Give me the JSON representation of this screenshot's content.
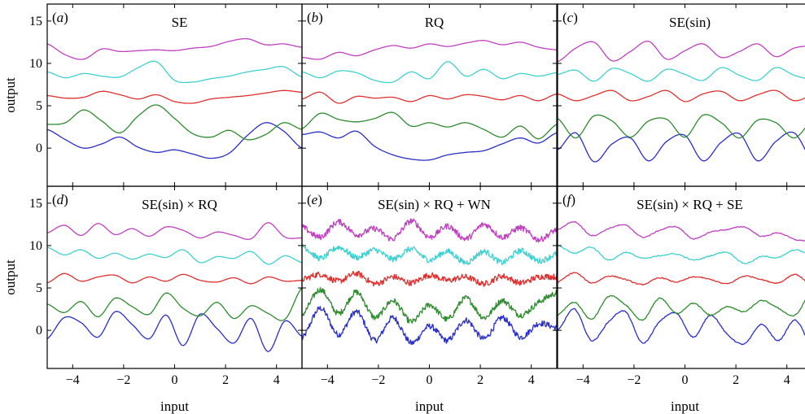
{
  "chart_data": {
    "type": "line",
    "layout": "2x3 grid",
    "xlabel": "input",
    "ylabel": "output",
    "xlim": [
      -5,
      5
    ],
    "ylim": [
      -4.5,
      17
    ],
    "x_ticks": [
      -4,
      -2,
      0,
      2,
      4
    ],
    "x_tick_labels": [
      "−4",
      "−2",
      "0",
      "2",
      "4"
    ],
    "y_ticks": [
      0,
      5,
      10,
      15
    ],
    "y_tick_labels": [
      "0",
      "5",
      "10",
      "15"
    ],
    "series_colors": [
      "#2a2fc8",
      "#2e8b2e",
      "#e03030",
      "#40d0d0",
      "#c040c0"
    ],
    "series_offsets": [
      0,
      3,
      6,
      9,
      12
    ],
    "panels": [
      {
        "letter": "a",
        "title": "SE",
        "noise": 0,
        "series": [
          {
            "color": "#2a2fc8",
            "values": [
              2.2,
              1.0,
              0.0,
              0.5,
              1.3,
              0.1,
              -0.5,
              -0.2,
              -0.7,
              -1.2,
              -0.6,
              1.5,
              3.0,
              2.0,
              0.0
            ]
          },
          {
            "color": "#2e8b2e",
            "values": [
              2.8,
              3.0,
              4.5,
              3.2,
              1.8,
              3.8,
              5.1,
              3.5,
              1.7,
              1.3,
              2.1,
              1.0,
              1.6,
              3.0,
              2.2
            ]
          },
          {
            "color": "#e03030",
            "values": [
              6.2,
              5.9,
              6.0,
              6.7,
              6.3,
              5.8,
              6.3,
              5.5,
              5.3,
              5.8,
              6.0,
              6.2,
              6.5,
              6.8,
              6.6
            ]
          },
          {
            "color": "#40d0d0",
            "values": [
              9.0,
              8.3,
              8.8,
              8.5,
              8.4,
              9.5,
              10.2,
              8.0,
              7.8,
              8.2,
              8.5,
              9.0,
              9.3,
              9.6,
              8.4
            ]
          },
          {
            "color": "#c040c0",
            "values": [
              12.3,
              11.0,
              10.5,
              11.7,
              11.4,
              11.5,
              11.6,
              11.5,
              11.8,
              12.0,
              12.6,
              12.9,
              12.2,
              12.3,
              11.9
            ]
          }
        ]
      },
      {
        "letter": "b",
        "title": "RQ",
        "noise": 0,
        "series": [
          {
            "color": "#2a2fc8",
            "values": [
              1.6,
              1.9,
              1.2,
              2.0,
              0.2,
              -0.8,
              -1.3,
              -1.4,
              -0.8,
              -0.5,
              -0.3,
              0.5,
              1.2,
              0.6,
              1.8
            ]
          },
          {
            "color": "#2e8b2e",
            "values": [
              2.3,
              4.1,
              3.4,
              3.1,
              3.5,
              4.2,
              2.6,
              3.0,
              2.5,
              3.0,
              2.2,
              1.3,
              2.6,
              1.1,
              2.8
            ]
          },
          {
            "color": "#e03030",
            "values": [
              5.8,
              6.6,
              5.3,
              6.1,
              5.9,
              6.0,
              5.5,
              6.2,
              5.8,
              6.3,
              6.1,
              5.7,
              6.2,
              5.6,
              6.4
            ]
          },
          {
            "color": "#40d0d0",
            "values": [
              9.0,
              8.3,
              9.1,
              8.9,
              8.0,
              7.8,
              9.0,
              8.2,
              10.2,
              8.5,
              9.3,
              8.2,
              8.8,
              8.5,
              8.9
            ]
          },
          {
            "color": "#c040c0",
            "values": [
              10.7,
              10.5,
              11.3,
              10.9,
              11.6,
              12.1,
              11.8,
              12.3,
              12.0,
              12.4,
              12.7,
              12.2,
              12.5,
              11.9,
              11.6
            ]
          }
        ]
      },
      {
        "letter": "c",
        "title": "SE(sin)",
        "noise": 0,
        "series": [
          {
            "color": "#2a2fc8",
            "values": [
              -0.2,
              1.8,
              -1.6,
              0.5,
              1.2,
              -1.5,
              0.8,
              1.5,
              -1.5,
              0.7,
              1.7,
              -1.5,
              0.8,
              1.8,
              -1.4
            ]
          },
          {
            "color": "#2e8b2e",
            "values": [
              3.5,
              1.2,
              3.8,
              3.2,
              1.3,
              3.2,
              3.4,
              1.3,
              3.9,
              3.0,
              1.2,
              3.3,
              3.0,
              1.2,
              3.2
            ]
          },
          {
            "color": "#e03030",
            "values": [
              6.4,
              5.6,
              6.2,
              6.8,
              5.6,
              6.1,
              6.8,
              5.5,
              6.4,
              6.7,
              5.6,
              6.3,
              6.8,
              5.6,
              6.2
            ]
          },
          {
            "color": "#40d0d0",
            "values": [
              8.7,
              9.2,
              7.9,
              9.4,
              8.8,
              7.9,
              9.3,
              8.7,
              8.0,
              9.5,
              8.6,
              8.0,
              9.5,
              8.6,
              8.1
            ]
          },
          {
            "color": "#c040c0",
            "values": [
              10.2,
              11.8,
              12.5,
              10.3,
              11.4,
              12.6,
              10.5,
              11.5,
              12.3,
              10.7,
              11.4,
              12.3,
              10.8,
              11.8,
              12.1
            ]
          }
        ]
      },
      {
        "letter": "d",
        "title": "SE(sin) × RQ",
        "noise": 0,
        "series": [
          {
            "color": "#2a2fc8",
            "values": [
              -1.0,
              1.5,
              0.9,
              -0.8,
              2.2,
              0.7,
              -1.0,
              1.8,
              -1.8,
              1.9,
              0.2,
              -1.5,
              1.4,
              -2.5,
              1.1,
              -0.7
            ]
          },
          {
            "color": "#2e8b2e",
            "values": [
              3.1,
              2.1,
              3.4,
              1.6,
              3.8,
              2.8,
              1.9,
              4.4,
              2.6,
              1.7,
              3.3,
              1.4,
              2.9,
              2.0,
              1.3,
              5.0
            ]
          },
          {
            "color": "#e03030",
            "values": [
              5.6,
              6.7,
              5.8,
              6.3,
              6.5,
              5.6,
              6.3,
              5.8,
              6.6,
              5.9,
              5.7,
              6.2,
              5.5,
              6.3,
              5.8,
              5.9
            ]
          },
          {
            "color": "#40d0d0",
            "values": [
              9.8,
              8.9,
              9.5,
              8.5,
              9.1,
              8.4,
              9.0,
              8.6,
              9.5,
              8.0,
              8.7,
              8.5,
              9.3,
              7.8,
              8.8,
              8.0
            ]
          },
          {
            "color": "#c040c0",
            "values": [
              11.5,
              12.4,
              11.2,
              12.6,
              11.3,
              12.0,
              11.1,
              12.2,
              11.8,
              10.9,
              11.6,
              11.2,
              10.8,
              12.7,
              11.0,
              10.9
            ]
          }
        ]
      },
      {
        "letter": "e",
        "title": "SE(sin) × RQ + WN",
        "noise": 0.35,
        "series": [
          {
            "color": "#2a2fc8",
            "values": [
              -1.0,
              2.6,
              -0.5,
              2.2,
              -1.2,
              1.5,
              -1.5,
              0.5,
              -1.2,
              1.2,
              -1.0,
              1.5,
              -0.8,
              0.8,
              0.3
            ]
          },
          {
            "color": "#2e8b2e",
            "values": [
              1.8,
              4.8,
              2.0,
              4.5,
              1.5,
              3.5,
              1.0,
              3.0,
              1.3,
              3.8,
              1.5,
              3.5,
              1.8,
              3.3,
              4.4
            ]
          },
          {
            "color": "#e03030",
            "values": [
              6.0,
              6.6,
              5.8,
              6.7,
              5.5,
              6.3,
              5.6,
              6.5,
              5.9,
              6.3,
              5.5,
              6.4,
              5.6,
              6.3,
              6.3
            ]
          },
          {
            "color": "#40d0d0",
            "values": [
              10.0,
              8.5,
              9.8,
              8.6,
              9.5,
              8.4,
              9.6,
              8.3,
              9.3,
              8.0,
              9.3,
              8.0,
              9.4,
              8.2,
              9.0
            ]
          },
          {
            "color": "#c040c0",
            "values": [
              12.2,
              11.0,
              12.8,
              11.3,
              12.0,
              10.8,
              12.9,
              11.0,
              12.3,
              10.8,
              12.5,
              11.0,
              12.1,
              10.7,
              11.9
            ]
          }
        ]
      },
      {
        "letter": "f",
        "title": "SE(sin) × RQ + SE",
        "noise": 0.06,
        "series": [
          {
            "color": "#2a2fc8",
            "values": [
              0.0,
              2.5,
              -1.2,
              1.0,
              2.2,
              -1.5,
              1.0,
              2.0,
              -0.8,
              1.8,
              -0.5,
              -1.6,
              0.7,
              -1.2,
              1.2,
              -2.0
            ]
          },
          {
            "color": "#2e8b2e",
            "values": [
              1.8,
              3.3,
              1.3,
              4.0,
              3.0,
              1.2,
              3.8,
              2.0,
              3.2,
              1.8,
              2.8,
              2.2,
              3.5,
              2.6,
              1.8,
              4.8
            ]
          },
          {
            "color": "#e03030",
            "values": [
              5.7,
              6.8,
              5.6,
              6.4,
              6.0,
              5.4,
              6.2,
              5.7,
              6.3,
              6.0,
              5.5,
              6.4,
              6.0,
              5.6,
              6.6,
              5.2
            ]
          },
          {
            "color": "#40d0d0",
            "values": [
              10.0,
              9.1,
              9.8,
              8.3,
              9.2,
              8.5,
              8.8,
              9.0,
              8.3,
              8.8,
              9.2,
              7.9,
              8.7,
              8.6,
              9.5,
              8.8
            ]
          },
          {
            "color": "#c040c0",
            "values": [
              11.9,
              12.8,
              11.2,
              12.0,
              12.4,
              11.0,
              11.8,
              12.2,
              10.8,
              11.6,
              11.9,
              12.2,
              11.1,
              11.5,
              10.7,
              10.6
            ]
          }
        ]
      }
    ]
  }
}
